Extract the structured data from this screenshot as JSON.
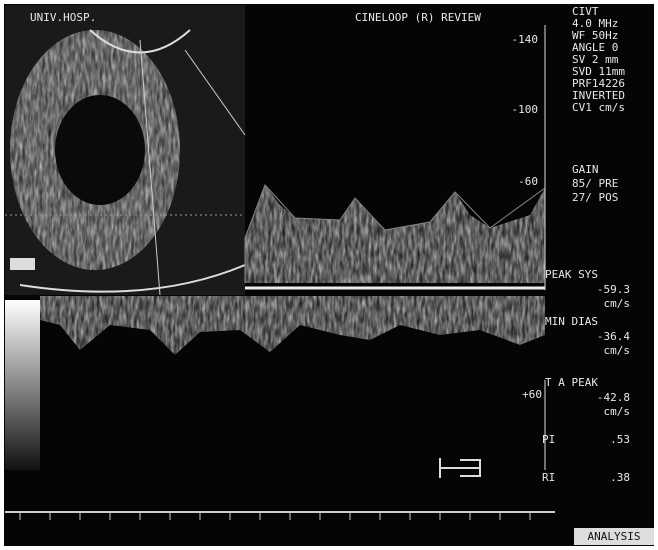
{
  "header": {
    "institution": "UNIV.HOSP.",
    "mode": "CINELOOP (R) REVIEW"
  },
  "scale": [
    "-140",
    "-100",
    "-60",
    "+60"
  ],
  "settings": [
    "CIVT",
    "4.0 MHz",
    "WF 50Hz",
    "ANGLE 0",
    "SV 2 mm",
    "SVD 11mm",
    "PRF14226",
    "INVERTED",
    "CV1 cm/s"
  ],
  "gain": {
    "label": "GAIN",
    "pre": "85/ PRE",
    "pos": "27/ POS"
  },
  "measurements": [
    {
      "label": "PEAK SYS",
      "value": "-59.3",
      "unit": "cm/s"
    },
    {
      "label": "MIN DIAS",
      "value": "-36.4",
      "unit": "cm/s"
    },
    {
      "label": "T A PEAK",
      "value": "-42.8",
      "unit": "cm/s"
    }
  ],
  "indices": [
    {
      "label": "PI",
      "value": ".53"
    },
    {
      "label": "RI",
      "value": ".38"
    }
  ],
  "footer": "ANALYSIS"
}
